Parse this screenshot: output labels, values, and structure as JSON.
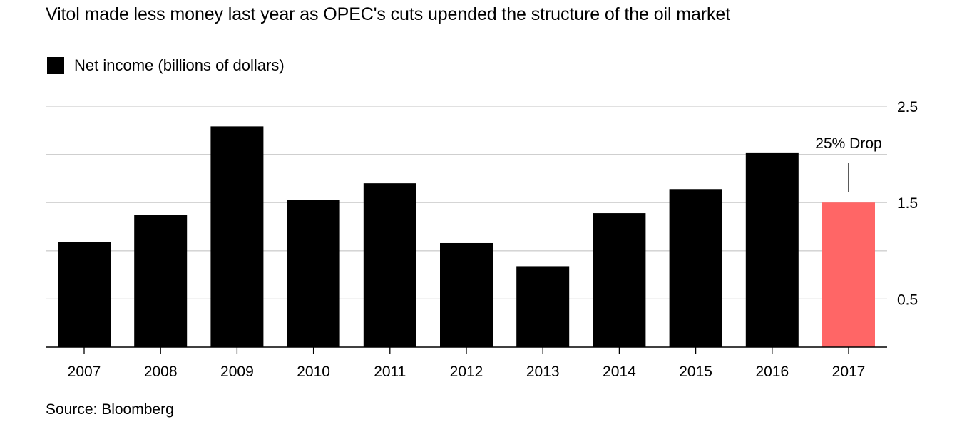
{
  "title": "Vitol made less money last year as OPEC's cuts upended the structure of the oil market",
  "source": "Source: Bloomberg",
  "colors": {
    "bar": "#000000",
    "highlight": "#ff6666",
    "grid": "#cfcfcf"
  },
  "chart_data": {
    "type": "bar",
    "categories": [
      "2007",
      "2008",
      "2009",
      "2010",
      "2011",
      "2012",
      "2013",
      "2014",
      "2015",
      "2016",
      "2017"
    ],
    "series": [
      {
        "name": "Net income (billions of dollars)",
        "values": [
          1.09,
          1.37,
          2.29,
          1.53,
          1.7,
          1.08,
          0.84,
          1.39,
          1.64,
          2.02,
          1.5
        ]
      }
    ],
    "highlight_index": 10,
    "ylim": [
      0,
      2.5
    ],
    "yticks": [
      0.5,
      1.5,
      2.5
    ],
    "ytick_labels": [
      "0.5",
      "1.5",
      "2.5"
    ],
    "gridlines": [
      0.5,
      1.0,
      1.5,
      2.0,
      2.5
    ],
    "y_axis_position": "right",
    "legend_position": "top-left",
    "annotation": {
      "text": "25% Drop",
      "category": "2017"
    },
    "xlabel": "",
    "ylabel": ""
  }
}
